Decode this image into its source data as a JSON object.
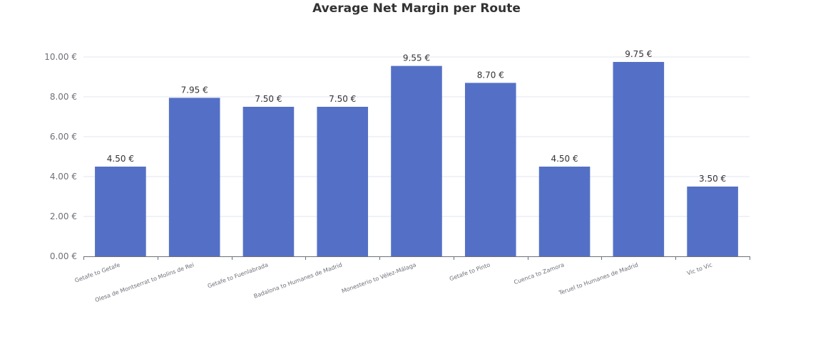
{
  "chart_data": {
    "type": "bar",
    "title": "Average Net Margin per Route",
    "xlabel": "",
    "ylabel": "",
    "categories": [
      "Getafe to Getafe",
      "Olesa de Montserrat to Molins de Rei",
      "Getafe to Fuenlabrada",
      "Badalona to Humanes de Madrid",
      "Monesterio to Vélez-Málaga",
      "Getafe to Pinto",
      "Cuenca to Zamora",
      "Teruel to Humanes de Madrid",
      "Vic to Vic"
    ],
    "values": [
      4.5,
      7.95,
      7.5,
      7.5,
      9.55,
      8.7,
      4.5,
      9.75,
      3.5
    ],
    "data_labels": [
      "4.50 €",
      "7.95 €",
      "7.50 €",
      "7.50 €",
      "9.55 €",
      "8.70 €",
      "4.50 €",
      "9.75 €",
      "3.50 €"
    ],
    "yticks": [
      0,
      2,
      4,
      6,
      8,
      10
    ],
    "ytick_labels": [
      "0.00 €",
      "2.00 €",
      "4.00 €",
      "6.00 €",
      "8.00 €",
      "10.00 €"
    ],
    "ylim": [
      0,
      10
    ],
    "grid": true,
    "legend": "none",
    "colors": {
      "bar": "#5470c6",
      "grid": "#e0e6f1",
      "axis": "#6e7079",
      "title": "#333333"
    }
  }
}
